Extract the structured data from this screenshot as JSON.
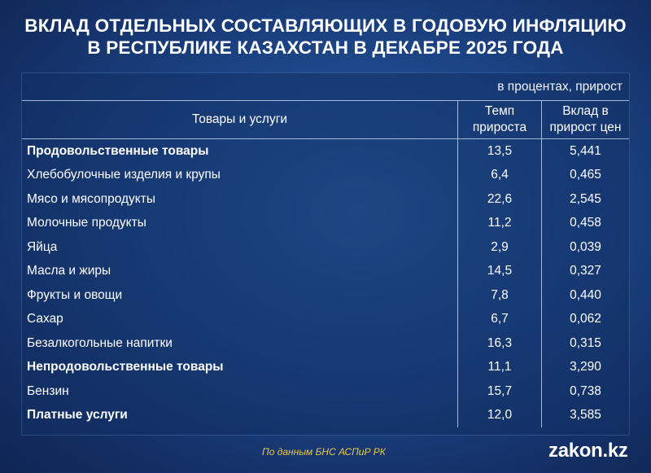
{
  "title": {
    "line1": "ВКЛАД ОТДЕЛЬНЫХ СОСТАВЛЯЮЩИХ В ГОДОВУЮ ИНФЛЯЦИЮ",
    "line2": "В РЕСПУБЛИКЕ КАЗАХСТАН В ДЕКАБРЕ 2025 ГОДА"
  },
  "units": "в процентах, прирост",
  "table": {
    "headers": {
      "goods": "Товары и услуги",
      "rate_line1": "Темп",
      "rate_line2": "прироста",
      "contribution_line1": "Вклад в",
      "contribution_line2": "прирост цен"
    },
    "rows": [
      {
        "name": "Продовольственные товары",
        "rate": "13,5",
        "contribution": "5,441",
        "bold": true
      },
      {
        "name": "Хлебобулочные изделия и крупы",
        "rate": "6,4",
        "contribution": "0,465",
        "bold": false
      },
      {
        "name": "Мясо и мясопродукты",
        "rate": "22,6",
        "contribution": "2,545",
        "bold": false
      },
      {
        "name": "Молочные продукты",
        "rate": "11,2",
        "contribution": "0,458",
        "bold": false
      },
      {
        "name": "Яйца",
        "rate": "2,9",
        "contribution": "0,039",
        "bold": false
      },
      {
        "name": "Масла и жиры",
        "rate": "14,5",
        "contribution": "0,327",
        "bold": false
      },
      {
        "name": "Фрукты и овощи",
        "rate": "7,8",
        "contribution": "0,440",
        "bold": false
      },
      {
        "name": "Сахар",
        "rate": "6,7",
        "contribution": "0,062",
        "bold": false
      },
      {
        "name": "Безалкогольные напитки",
        "rate": "16,3",
        "contribution": "0,315",
        "bold": false
      },
      {
        "name": "Непродовольственные товары",
        "rate": "11,1",
        "contribution": "3,290",
        "bold": true
      },
      {
        "name": "Бензин",
        "rate": "15,7",
        "contribution": "0,738",
        "bold": false
      },
      {
        "name": "Платные услуги",
        "rate": "12,0",
        "contribution": "3,585",
        "bold": true
      }
    ]
  },
  "source": "По данным БНС АСПиР РК",
  "logo": "zakon.kz",
  "colors": {
    "background": "#1c4485",
    "text": "#ffffff",
    "source_text": "#e8c84a"
  }
}
